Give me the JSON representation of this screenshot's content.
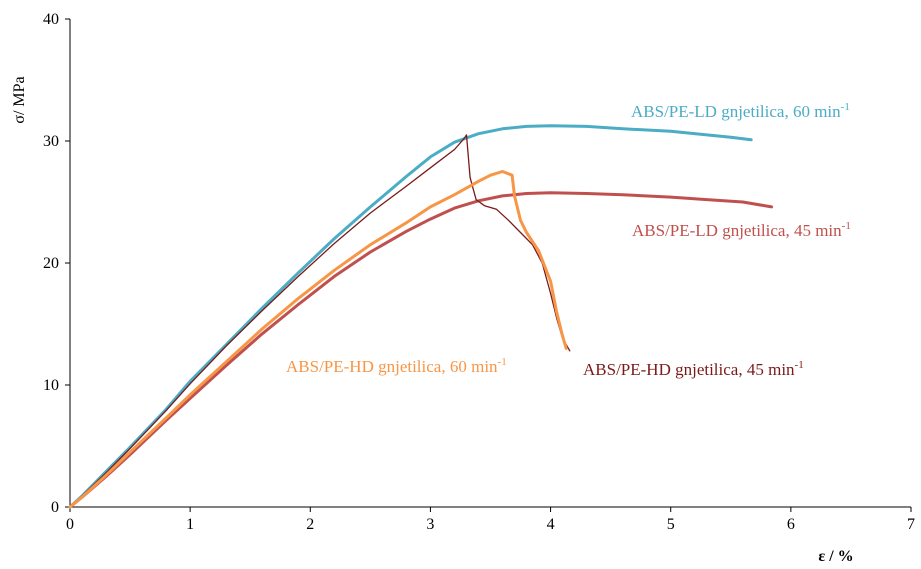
{
  "chart_data": {
    "type": "line",
    "title": "",
    "xlabel": "ε / %",
    "ylabel": "σ/ MPa",
    "xlim": [
      0,
      7
    ],
    "ylim": [
      0,
      40
    ],
    "xticks": [
      0,
      1,
      2,
      3,
      4,
      5,
      6,
      7
    ],
    "yticks": [
      0,
      10,
      20,
      30,
      40
    ],
    "grid": false,
    "legend": "inline labels",
    "series": [
      {
        "name": "ABS/PE-LD gnjetilica, 60 min",
        "name_sup": "-1",
        "color": "#4bacc6",
        "stroke_width": 3,
        "points": [
          [
            0,
            0
          ],
          [
            0.1,
            0.9
          ],
          [
            0.3,
            2.9
          ],
          [
            0.5,
            4.9
          ],
          [
            0.8,
            8.0
          ],
          [
            1.0,
            10.3
          ],
          [
            1.3,
            13.3
          ],
          [
            1.6,
            16.3
          ],
          [
            1.9,
            19.2
          ],
          [
            2.2,
            22.0
          ],
          [
            2.5,
            24.6
          ],
          [
            2.8,
            27.1
          ],
          [
            3.0,
            28.7
          ],
          [
            3.2,
            29.9
          ],
          [
            3.4,
            30.6
          ],
          [
            3.6,
            31.0
          ],
          [
            3.8,
            31.2
          ],
          [
            4.0,
            31.25
          ],
          [
            4.3,
            31.2
          ],
          [
            4.6,
            31.0
          ],
          [
            5.0,
            30.8
          ],
          [
            5.3,
            30.5
          ],
          [
            5.5,
            30.3
          ],
          [
            5.67,
            30.1
          ]
        ]
      },
      {
        "name": "ABS/PE-LD gnjetilica, 45 min",
        "name_sup": "-1",
        "color": "#c0504d",
        "stroke_width": 3,
        "points": [
          [
            0,
            0
          ],
          [
            0.1,
            0.8
          ],
          [
            0.3,
            2.5
          ],
          [
            0.5,
            4.3
          ],
          [
            0.8,
            7.1
          ],
          [
            1.0,
            8.9
          ],
          [
            1.3,
            11.6
          ],
          [
            1.6,
            14.2
          ],
          [
            1.9,
            16.6
          ],
          [
            2.2,
            18.9
          ],
          [
            2.5,
            20.9
          ],
          [
            2.8,
            22.6
          ],
          [
            3.0,
            23.6
          ],
          [
            3.2,
            24.5
          ],
          [
            3.4,
            25.1
          ],
          [
            3.6,
            25.5
          ],
          [
            3.8,
            25.7
          ],
          [
            4.0,
            25.75
          ],
          [
            4.3,
            25.7
          ],
          [
            4.6,
            25.6
          ],
          [
            5.0,
            25.4
          ],
          [
            5.3,
            25.2
          ],
          [
            5.6,
            25.0
          ],
          [
            5.84,
            24.6
          ]
        ]
      },
      {
        "name": "ABS/PE-HD gnjetilica, 60 min",
        "name_sup": "-1",
        "color": "#f79646",
        "stroke_width": 3,
        "points": [
          [
            0,
            0
          ],
          [
            0.1,
            0.8
          ],
          [
            0.3,
            2.6
          ],
          [
            0.5,
            4.5
          ],
          [
            0.8,
            7.3
          ],
          [
            1.0,
            9.2
          ],
          [
            1.3,
            11.9
          ],
          [
            1.6,
            14.6
          ],
          [
            1.9,
            17.1
          ],
          [
            2.2,
            19.4
          ],
          [
            2.5,
            21.5
          ],
          [
            2.8,
            23.3
          ],
          [
            3.0,
            24.6
          ],
          [
            3.2,
            25.6
          ],
          [
            3.4,
            26.7
          ],
          [
            3.5,
            27.2
          ],
          [
            3.6,
            27.5
          ],
          [
            3.68,
            27.2
          ],
          [
            3.7,
            25.5
          ],
          [
            3.75,
            23.5
          ],
          [
            3.8,
            22.5
          ],
          [
            3.9,
            21.0
          ],
          [
            4.0,
            18.5
          ],
          [
            4.05,
            16.0
          ],
          [
            4.1,
            14.0
          ],
          [
            4.13,
            13.0
          ]
        ]
      },
      {
        "name": "ABS/PE-HD gnjetilica, 45 min",
        "name_sup": "-1",
        "color": "#7b1a1a",
        "stroke_width": 1.3,
        "points": [
          [
            0,
            0
          ],
          [
            0.1,
            0.9
          ],
          [
            0.3,
            2.8
          ],
          [
            0.5,
            4.8
          ],
          [
            0.8,
            7.9
          ],
          [
            1.0,
            10.1
          ],
          [
            1.3,
            13.2
          ],
          [
            1.6,
            16.1
          ],
          [
            1.9,
            18.9
          ],
          [
            2.2,
            21.6
          ],
          [
            2.5,
            24.1
          ],
          [
            2.8,
            26.3
          ],
          [
            3.0,
            27.8
          ],
          [
            3.2,
            29.3
          ],
          [
            3.28,
            30.2
          ],
          [
            3.3,
            30.5
          ],
          [
            3.33,
            27.0
          ],
          [
            3.38,
            25.2
          ],
          [
            3.45,
            24.7
          ],
          [
            3.55,
            24.4
          ],
          [
            3.65,
            23.5
          ],
          [
            3.75,
            22.5
          ],
          [
            3.85,
            21.5
          ],
          [
            3.93,
            20.0
          ],
          [
            4.0,
            17.5
          ],
          [
            4.05,
            15.5
          ],
          [
            4.1,
            13.8
          ],
          [
            4.16,
            12.8
          ]
        ]
      }
    ]
  }
}
